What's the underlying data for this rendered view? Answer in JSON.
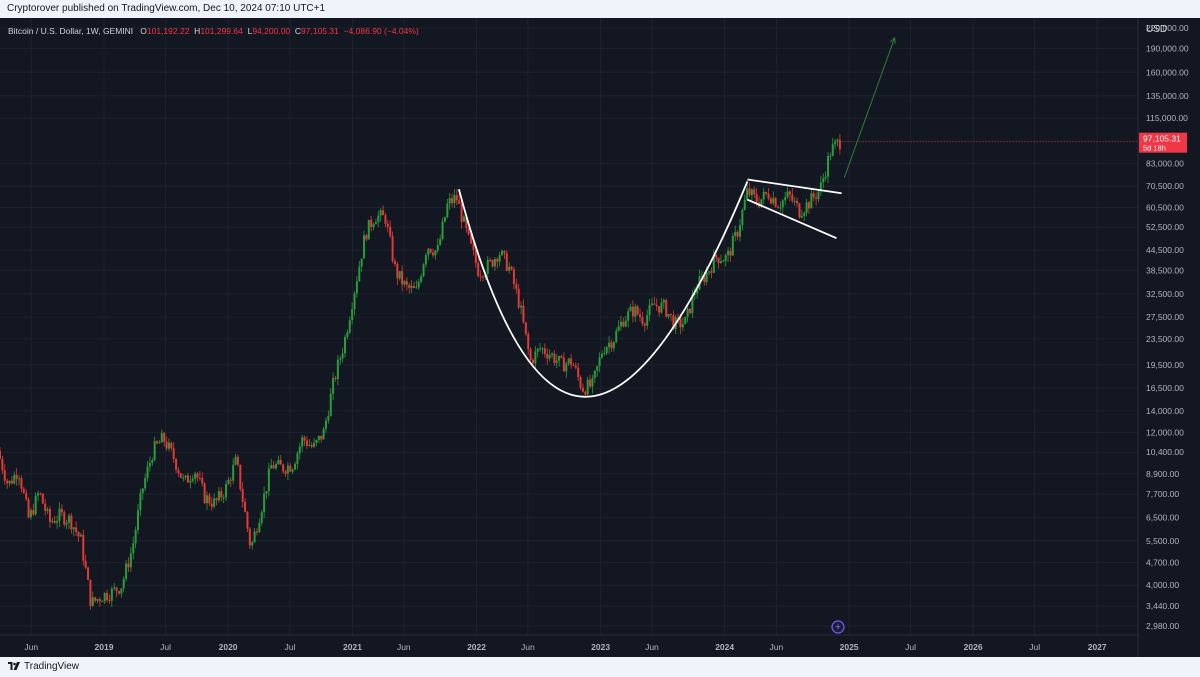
{
  "publisher_line": "Cryptorover published on TradingView.com, Dec 10, 2024 07:10 UTC+1",
  "legend": {
    "symbol": "Bitcoin / U.S. Dollar, 1W, GEMINI",
    "open_label": "O",
    "open": "101,192.22",
    "high_label": "H",
    "high": "101,299.64",
    "low_label": "L",
    "low": "94,200.00",
    "close_label": "C",
    "close": "97,105.31",
    "change": "−4,086.90 (−4.04%)"
  },
  "price_tag": {
    "value": "97,105.31",
    "countdown": "5d 18h"
  },
  "brand": "TradingView",
  "colors": {
    "up": "#26a69a",
    "down": "#ef5350",
    "up_candle": "#2a9d3a",
    "down_candle": "#e53935",
    "bg": "#131722",
    "grid": "#1e222d",
    "axis_text": "#b2b5be",
    "pattern": "#ffffff",
    "projection": "#2e7d32",
    "price_tag": "#f23645"
  },
  "chart_data": {
    "type": "candlestick",
    "timeframe": "1W",
    "y_axis": {
      "unit": "USD",
      "scale": "log",
      "ticks": [
        "220,000.00",
        "190,000.00",
        "160,000.00",
        "135,000.00",
        "115,000.00",
        "83,000.00",
        "70,500.00",
        "60,500.00",
        "52,500.00",
        "44,500.00",
        "38,500.00",
        "32,500.00",
        "27,500.00",
        "23,500.00",
        "19,500.00",
        "16,500.00",
        "14,000.00",
        "12,000.00",
        "10,400.00",
        "8,900.00",
        "7,700.00",
        "6,500.00",
        "5,500.00",
        "4,700.00",
        "4,000.00",
        "3,440.00",
        "2,980.00"
      ],
      "ylim": [
        2980,
        220000
      ]
    },
    "x_axis": {
      "ticks": [
        {
          "label": "Jun",
          "date": "2018-06-01",
          "bold": false
        },
        {
          "label": "2019",
          "date": "2019-01-01",
          "bold": true
        },
        {
          "label": "Jul",
          "date": "2019-07-01",
          "bold": false
        },
        {
          "label": "2020",
          "date": "2020-01-01",
          "bold": true
        },
        {
          "label": "Jul",
          "date": "2020-07-01",
          "bold": false
        },
        {
          "label": "2021",
          "date": "2021-01-01",
          "bold": true
        },
        {
          "label": "Jun",
          "date": "2021-06-01",
          "bold": false
        },
        {
          "label": "2022",
          "date": "2022-01-01",
          "bold": true
        },
        {
          "label": "Jun",
          "date": "2022-06-01",
          "bold": false
        },
        {
          "label": "2023",
          "date": "2023-01-01",
          "bold": true
        },
        {
          "label": "Jun",
          "date": "2023-06-01",
          "bold": false
        },
        {
          "label": "2024",
          "date": "2024-01-01",
          "bold": true
        },
        {
          "label": "Jun",
          "date": "2024-06-01",
          "bold": false
        },
        {
          "label": "2025",
          "date": "2025-01-01",
          "bold": true
        },
        {
          "label": "Jul",
          "date": "2025-07-01",
          "bold": false
        },
        {
          "label": "2026",
          "date": "2026-01-01",
          "bold": true
        },
        {
          "label": "Jul",
          "date": "2026-07-01",
          "bold": false
        },
        {
          "label": "2027",
          "date": "2027-01-01",
          "bold": true
        }
      ],
      "xlim": [
        "2018-03-01",
        "2027-05-01"
      ]
    },
    "price_path": [
      [
        "2018-03-01",
        10500
      ],
      [
        "2018-04-01",
        8200
      ],
      [
        "2018-05-01",
        9200
      ],
      [
        "2018-06-01",
        6400
      ],
      [
        "2018-07-01",
        7800
      ],
      [
        "2018-08-01",
        6300
      ],
      [
        "2018-09-01",
        6600
      ],
      [
        "2018-10-01",
        6400
      ],
      [
        "2018-11-01",
        5500
      ],
      [
        "2018-12-01",
        3500
      ],
      [
        "2019-01-01",
        3700
      ],
      [
        "2019-02-01",
        3800
      ],
      [
        "2019-03-01",
        4000
      ],
      [
        "2019-04-01",
        5200
      ],
      [
        "2019-05-01",
        8000
      ],
      [
        "2019-06-01",
        10500
      ],
      [
        "2019-07-01",
        11500
      ],
      [
        "2019-08-01",
        10000
      ],
      [
        "2019-09-01",
        8300
      ],
      [
        "2019-10-01",
        9200
      ],
      [
        "2019-11-01",
        7500
      ],
      [
        "2019-12-01",
        7200
      ],
      [
        "2020-01-01",
        8000
      ],
      [
        "2020-02-01",
        9800
      ],
      [
        "2020-03-15",
        5200
      ],
      [
        "2020-04-15",
        7000
      ],
      [
        "2020-05-15",
        9500
      ],
      [
        "2020-06-15",
        9300
      ],
      [
        "2020-07-15",
        9500
      ],
      [
        "2020-08-15",
        11500
      ],
      [
        "2020-09-15",
        10700
      ],
      [
        "2020-10-15",
        12000
      ],
      [
        "2020-11-15",
        17500
      ],
      [
        "2020-12-15",
        23000
      ],
      [
        "2021-01-15",
        34000
      ],
      [
        "2021-02-15",
        50000
      ],
      [
        "2021-03-15",
        57000
      ],
      [
        "2021-04-15",
        56000
      ],
      [
        "2021-05-15",
        38000
      ],
      [
        "2021-06-15",
        34000
      ],
      [
        "2021-07-15",
        33000
      ],
      [
        "2021-08-15",
        46000
      ],
      [
        "2021-09-15",
        44000
      ],
      [
        "2021-10-15",
        62000
      ],
      [
        "2021-11-10",
        65000
      ],
      [
        "2021-12-15",
        48000
      ],
      [
        "2022-01-15",
        38000
      ],
      [
        "2022-02-15",
        40000
      ],
      [
        "2022-03-15",
        44000
      ],
      [
        "2022-04-15",
        39000
      ],
      [
        "2022-05-15",
        30000
      ],
      [
        "2022-06-15",
        20000
      ],
      [
        "2022-07-15",
        22000
      ],
      [
        "2022-08-15",
        21000
      ],
      [
        "2022-09-15",
        19500
      ],
      [
        "2022-10-15",
        20000
      ],
      [
        "2022-11-15",
        16500
      ],
      [
        "2022-12-15",
        16800
      ],
      [
        "2023-01-15",
        22000
      ],
      [
        "2023-02-15",
        23500
      ],
      [
        "2023-03-15",
        27000
      ],
      [
        "2023-04-15",
        29000
      ],
      [
        "2023-05-15",
        27000
      ],
      [
        "2023-06-15",
        30000
      ],
      [
        "2023-07-15",
        29500
      ],
      [
        "2023-08-15",
        26000
      ],
      [
        "2023-09-15",
        26500
      ],
      [
        "2023-10-15",
        34000
      ],
      [
        "2023-11-15",
        37500
      ],
      [
        "2023-12-15",
        42500
      ],
      [
        "2024-01-15",
        42000
      ],
      [
        "2024-02-15",
        51000
      ],
      [
        "2024-03-15",
        68000
      ],
      [
        "2024-04-15",
        63000
      ],
      [
        "2024-05-15",
        67000
      ],
      [
        "2024-06-15",
        62000
      ],
      [
        "2024-07-15",
        66000
      ],
      [
        "2024-08-15",
        59000
      ],
      [
        "2024-09-15",
        63000
      ],
      [
        "2024-10-15",
        69000
      ],
      [
        "2024-11-15",
        91000
      ],
      [
        "2024-12-10",
        97105
      ]
    ],
    "annotations": {
      "cup_curve": [
        [
          "2021-11-10",
          69000
        ],
        [
          "2022-11-21",
          15500
        ],
        [
          "2024-03-08",
          73000
        ]
      ],
      "flag_upper": [
        [
          "2024-03-08",
          74000
        ],
        [
          "2024-12-10",
          67000
        ]
      ],
      "flag_lower": [
        [
          "2024-03-08",
          64000
        ],
        [
          "2024-11-25",
          48500
        ]
      ],
      "projection_arrow": [
        [
          "2024-12-18",
          75000
        ],
        [
          "2025-05-15",
          205000
        ]
      ]
    }
  }
}
